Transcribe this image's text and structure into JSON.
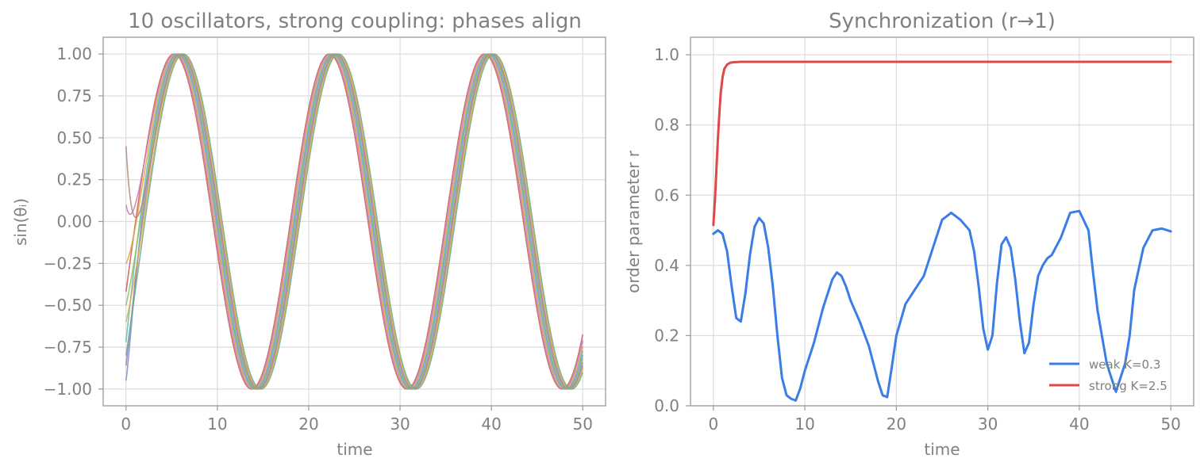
{
  "chart_data": [
    {
      "type": "line",
      "title": "10 oscillators, strong coupling: phases align",
      "xlabel": "time",
      "ylabel": "sin(θᵢ)",
      "xlim": [
        -2.5,
        52.5
      ],
      "ylim": [
        -1.1,
        1.1
      ],
      "xticks": [
        0,
        10,
        20,
        30,
        40,
        50
      ],
      "xtick_labels": [
        "0",
        "10",
        "20",
        "30",
        "40",
        "50"
      ],
      "yticks": [
        1.0,
        0.75,
        0.5,
        0.25,
        0.0,
        -0.25,
        -0.5,
        -0.75,
        -1.0
      ],
      "ytick_labels": [
        "1.00",
        "0.75",
        "0.50",
        "0.25",
        "0.00",
        "−0.25",
        "−0.50",
        "−0.75",
        "−1.00"
      ],
      "grid": true,
      "omega": 0.3696,
      "series": [
        {
          "initial_value": -0.42,
          "phase_offset": 0.0,
          "color": "#c85a5a"
        },
        {
          "initial_value": 0.1,
          "phase_offset": 0.05,
          "color": "#c77bb0"
        },
        {
          "initial_value": -0.25,
          "phase_offset": 0.1,
          "color": "#e8a23a"
        },
        {
          "initial_value": -0.72,
          "phase_offset": 0.14,
          "color": "#5dbbbb"
        },
        {
          "initial_value": -0.95,
          "phase_offset": 0.18,
          "color": "#7b8fd0"
        },
        {
          "initial_value": -0.5,
          "phase_offset": 0.22,
          "color": "#8fbf5a"
        },
        {
          "initial_value": -0.86,
          "phase_offset": 0.26,
          "color": "#9a7bc8"
        },
        {
          "initial_value": 0.45,
          "phase_offset": 0.3,
          "color": "#b08a7a"
        },
        {
          "initial_value": -0.6,
          "phase_offset": 0.34,
          "color": "#e0b03a"
        },
        {
          "initial_value": -0.8,
          "phase_offset": 0.38,
          "color": "#6aaa8a"
        }
      ]
    },
    {
      "type": "line",
      "title": "Synchronization (r→1)",
      "xlabel": "time",
      "ylabel": "order parameter  r",
      "xlim": [
        -2.5,
        52.5
      ],
      "ylim": [
        0.0,
        1.05
      ],
      "xticks": [
        0,
        10,
        20,
        30,
        40,
        50
      ],
      "xtick_labels": [
        "0",
        "10",
        "20",
        "30",
        "40",
        "50"
      ],
      "yticks": [
        0.0,
        0.2,
        0.4,
        0.6,
        0.8,
        1.0
      ],
      "ytick_labels": [
        "0.0",
        "0.2",
        "0.4",
        "0.6",
        "0.8",
        "1.0"
      ],
      "grid": true,
      "legend_position": "lower-right",
      "series": [
        {
          "name": "weak K=0.3",
          "color": "#3b7de6",
          "x": [
            0,
            0.5,
            1,
            1.5,
            2,
            2.5,
            3,
            3.5,
            4,
            4.5,
            5,
            5.5,
            6,
            6.5,
            7,
            7.5,
            8,
            8.5,
            9,
            9.5,
            10,
            11,
            12,
            13,
            13.5,
            14,
            14.5,
            15,
            16,
            17,
            17.5,
            18,
            18.5,
            19,
            19.5,
            20,
            21,
            22,
            23,
            24,
            25,
            26,
            27,
            28,
            28.5,
            29,
            29.5,
            30,
            30.5,
            31,
            31.5,
            32,
            32.5,
            33,
            33.5,
            34,
            34.5,
            35,
            35.5,
            36,
            36.5,
            37,
            38,
            39,
            40,
            41,
            41.5,
            42,
            43,
            44,
            45,
            45.5,
            46,
            47,
            48,
            49,
            50
          ],
          "values": [
            0.49,
            0.5,
            0.49,
            0.44,
            0.34,
            0.25,
            0.24,
            0.32,
            0.43,
            0.51,
            0.535,
            0.52,
            0.45,
            0.34,
            0.2,
            0.08,
            0.03,
            0.02,
            0.015,
            0.05,
            0.1,
            0.18,
            0.28,
            0.36,
            0.38,
            0.37,
            0.34,
            0.3,
            0.24,
            0.17,
            0.12,
            0.07,
            0.03,
            0.025,
            0.11,
            0.2,
            0.29,
            0.33,
            0.37,
            0.45,
            0.53,
            0.55,
            0.53,
            0.5,
            0.44,
            0.34,
            0.22,
            0.16,
            0.2,
            0.35,
            0.46,
            0.48,
            0.45,
            0.36,
            0.24,
            0.15,
            0.18,
            0.29,
            0.37,
            0.4,
            0.42,
            0.43,
            0.48,
            0.55,
            0.555,
            0.5,
            0.38,
            0.27,
            0.12,
            0.04,
            0.12,
            0.2,
            0.33,
            0.45,
            0.5,
            0.505,
            0.497
          ]
        },
        {
          "name": "strong K=2.5",
          "color": "#e04848",
          "x": [
            0,
            0.2,
            0.4,
            0.6,
            0.8,
            1.0,
            1.2,
            1.5,
            1.8,
            2.2,
            3,
            5,
            10,
            20,
            30,
            40,
            50
          ],
          "values": [
            0.515,
            0.6,
            0.71,
            0.81,
            0.89,
            0.935,
            0.96,
            0.972,
            0.977,
            0.979,
            0.98,
            0.98,
            0.98,
            0.98,
            0.98,
            0.98,
            0.98
          ]
        }
      ]
    }
  ]
}
